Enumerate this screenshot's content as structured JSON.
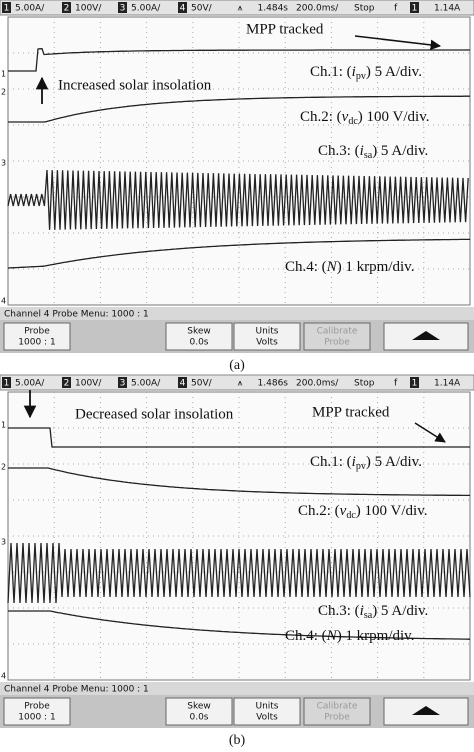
{
  "panels": [
    {
      "status": [
        {
          "num": "1",
          "text": "5.00A/"
        },
        {
          "num": "2",
          "text": "100V/"
        },
        {
          "num": "3",
          "text": "5.00A/"
        },
        {
          "num": "4",
          "text": "50V/"
        }
      ],
      "time": "1.484s",
      "timebase": "200.0ms/",
      "mode": "Stop",
      "trig_ch": "1",
      "trig_level": "1.14A",
      "markers": [
        "1",
        "2",
        "3",
        "4"
      ],
      "annotations": [
        "MPP tracked",
        "Increased solar insolation"
      ],
      "channels": [
        {
          "prefix": "Ch.1: (",
          "symbol": "i",
          "sub": "pv",
          "suffix": ") 5 A/div."
        },
        {
          "prefix": "Ch.2: (",
          "symbol": "v",
          "sub": "dc",
          "suffix": ") 100 V/div."
        },
        {
          "prefix": "Ch.3: (",
          "symbol": "i",
          "sub": "sa",
          "suffix": ") 5 A/div."
        },
        {
          "prefix": "Ch.4: (",
          "symbol": "N",
          "suffix": ") 1 krpm/div."
        }
      ],
      "menu": "Channel 4 Probe Menu: 1000 : 1",
      "softkeys": [
        {
          "top": "Probe",
          "bottom": "1000 : 1"
        },
        {
          "top": "Skew",
          "bottom": "0.0s"
        },
        {
          "top": "Units",
          "bottom": "Volts"
        },
        {
          "top": "Calibrate",
          "bottom": "Probe"
        }
      ],
      "caption": "(a)"
    },
    {
      "status": [
        {
          "num": "1",
          "text": "5.00A/"
        },
        {
          "num": "2",
          "text": "100V/"
        },
        {
          "num": "3",
          "text": "5.00A/"
        },
        {
          "num": "4",
          "text": "50V/"
        }
      ],
      "time": "1.486s",
      "timebase": "200.0ms/",
      "mode": "Stop",
      "trig_ch": "1",
      "trig_level": "1.14A",
      "markers": [
        "1",
        "2",
        "3",
        "4"
      ],
      "annotations": [
        "MPP tracked",
        "Decreased solar insolation"
      ],
      "channels": [
        {
          "prefix": "Ch.1: (",
          "symbol": "i",
          "sub": "pv",
          "suffix": ") 5 A/div."
        },
        {
          "prefix": "Ch.2: (",
          "symbol": "v",
          "sub": "dc",
          "suffix": ") 100 V/div."
        },
        {
          "prefix": "Ch.3: (",
          "symbol": "i",
          "sub": "sa",
          "suffix": ") 5 A/div."
        },
        {
          "prefix": "Ch.4: (",
          "symbol": "N",
          "suffix": ") 1 krpm/div."
        }
      ],
      "menu": "Channel 4 Probe Menu: 1000 : 1",
      "softkeys": [
        {
          "top": "Probe",
          "bottom": "1000 : 1"
        },
        {
          "top": "Skew",
          "bottom": "0.0s"
        },
        {
          "top": "Units",
          "bottom": "Volts"
        },
        {
          "top": "Calibrate",
          "bottom": "Probe"
        }
      ],
      "caption": "(b)"
    }
  ]
}
